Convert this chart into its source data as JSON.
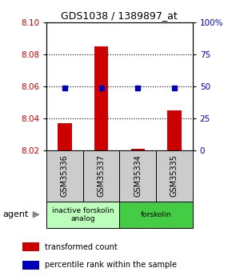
{
  "title": "GDS1038 / 1389897_at",
  "samples": [
    "GSM35336",
    "GSM35337",
    "GSM35334",
    "GSM35335"
  ],
  "red_values": [
    8.037,
    8.085,
    8.021,
    8.045
  ],
  "blue_values": [
    8.059,
    8.059,
    8.059,
    8.059
  ],
  "ylim_left": [
    8.02,
    8.1
  ],
  "ylim_right": [
    0,
    100
  ],
  "yticks_left": [
    8.02,
    8.04,
    8.06,
    8.08,
    8.1
  ],
  "ytick_labels_right": [
    "0",
    "25",
    "50",
    "75",
    "100%"
  ],
  "yticks_right": [
    0,
    25,
    50,
    75,
    100
  ],
  "groups": [
    {
      "label": "inactive forskolin\nanalog",
      "color": "#bbffbb",
      "span": [
        0,
        2
      ]
    },
    {
      "label": "forskolin",
      "color": "#44cc44",
      "span": [
        2,
        4
      ]
    }
  ],
  "bar_color": "#cc0000",
  "dot_color": "#0000bb",
  "sample_box_color": "#cccccc",
  "legend_red": "transformed count",
  "legend_blue": "percentile rank within the sample",
  "agent_label": "agent",
  "left_axis_color": "#cc0000",
  "right_axis_color": "#0000bb",
  "title_fontsize": 9
}
